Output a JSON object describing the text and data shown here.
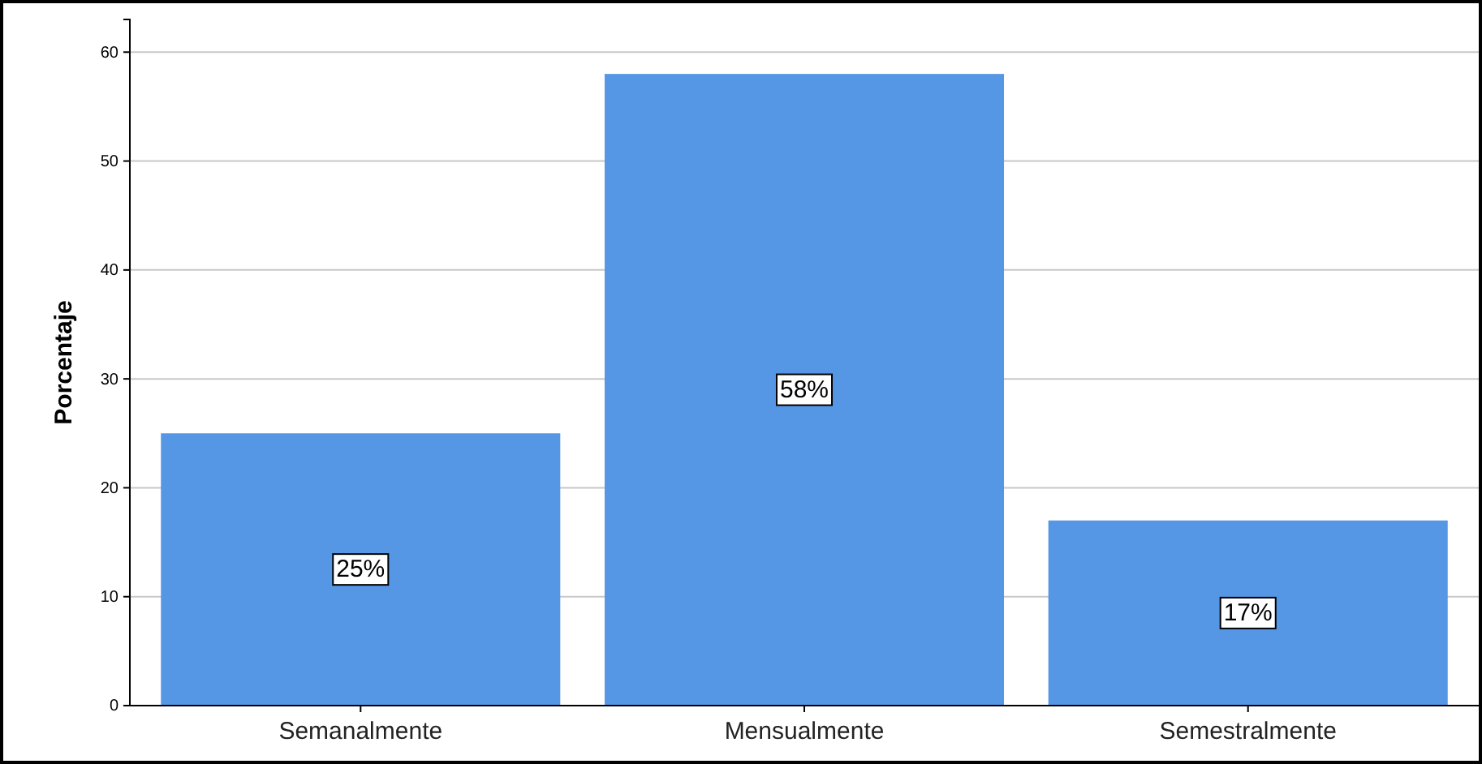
{
  "chart_data": {
    "type": "bar",
    "ylabel": "Porcentaje",
    "categories": [
      "Semanalmente",
      "Mensualmente",
      "Semestralmente"
    ],
    "values": [
      25,
      58,
      17
    ],
    "value_labels": [
      "25%",
      "58%",
      "17%"
    ],
    "color": "#5596e5",
    "ylim": [
      0,
      63
    ],
    "yticks": [
      0,
      10,
      20,
      30,
      40,
      50,
      60
    ],
    "grid": "y"
  }
}
